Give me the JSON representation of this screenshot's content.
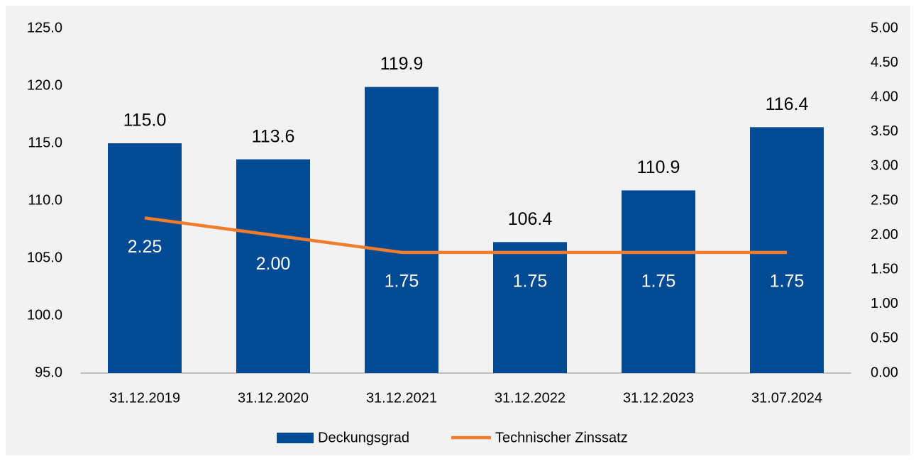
{
  "chart_data": {
    "type": "bar",
    "categories": [
      "31.12.2019",
      "31.12.2020",
      "31.12.2021",
      "31.12.2022",
      "31.12.2023",
      "31.07.2024"
    ],
    "series": [
      {
        "name": "Deckungsgrad",
        "type": "bar",
        "color": "#004b93",
        "values": [
          115.0,
          113.6,
          119.9,
          106.4,
          110.9,
          116.4
        ],
        "value_labels": [
          "115.0",
          "113.6",
          "119.9",
          "106.4",
          "110.9",
          "116.4"
        ]
      },
      {
        "name": "Technischer Zinssatz",
        "type": "line",
        "axis": "y2",
        "color": "#ef7d2d",
        "values": [
          2.25,
          2.0,
          1.75,
          1.75,
          1.75,
          1.75
        ],
        "value_labels": [
          "2.25",
          "2.00",
          "1.75",
          "1.75",
          "1.75",
          "1.75"
        ]
      }
    ],
    "ylim": [
      95,
      125
    ],
    "yticks": [
      {
        "value": 95,
        "label": "95.0"
      },
      {
        "value": 100,
        "label": "100.0"
      },
      {
        "value": 105,
        "label": "105.0"
      },
      {
        "value": 110,
        "label": "110.0"
      },
      {
        "value": 115,
        "label": "115.0"
      },
      {
        "value": 120,
        "label": "120.0"
      },
      {
        "value": 125,
        "label": "125.0"
      }
    ],
    "y2lim": [
      0,
      5
    ],
    "y2ticks": [
      {
        "value": 0,
        "label": "0.00"
      },
      {
        "value": 0.5,
        "label": "0.50"
      },
      {
        "value": 1,
        "label": "1.00"
      },
      {
        "value": 1.5,
        "label": "1.50"
      },
      {
        "value": 2,
        "label": "2.00"
      },
      {
        "value": 2.5,
        "label": "2.50"
      },
      {
        "value": 3,
        "label": "3.00"
      },
      {
        "value": 3.5,
        "label": "3.50"
      },
      {
        "value": 4,
        "label": "4.00"
      },
      {
        "value": 4.5,
        "label": "4.50"
      },
      {
        "value": 5,
        "label": "5.00"
      }
    ],
    "legend": "bottom",
    "grid": false
  }
}
